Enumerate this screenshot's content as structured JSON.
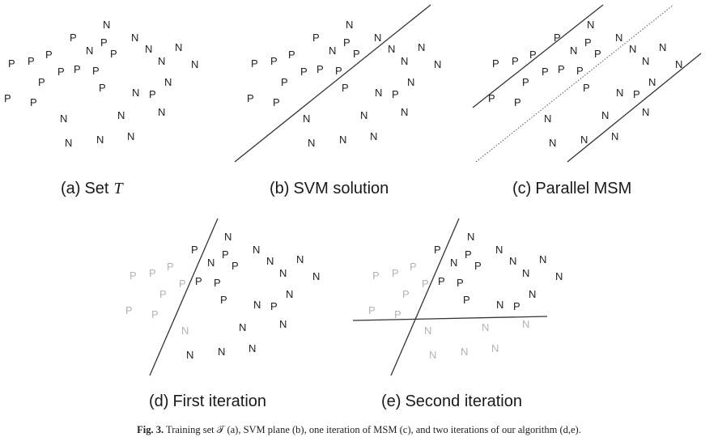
{
  "point_labels": {
    "positive": "P",
    "negative": "N"
  },
  "panels": [
    {
      "id": "a",
      "letter": "(a)",
      "title": "Set",
      "symbol": "T"
    },
    {
      "id": "b",
      "letter": "(b)",
      "title": "SVM solution"
    },
    {
      "id": "c",
      "letter": "(c)",
      "title": "Parallel MSM"
    },
    {
      "id": "d",
      "letter": "(d)",
      "title": "First iteration"
    },
    {
      "id": "e",
      "letter": "(e)",
      "title": "Second iteration"
    }
  ],
  "caption": {
    "label": "Fig. 3.",
    "text": "Training set 𝒯 (a), SVM plane (b), one iteration of MSM (c), and two iterations of our algorithm (d,e)."
  }
}
